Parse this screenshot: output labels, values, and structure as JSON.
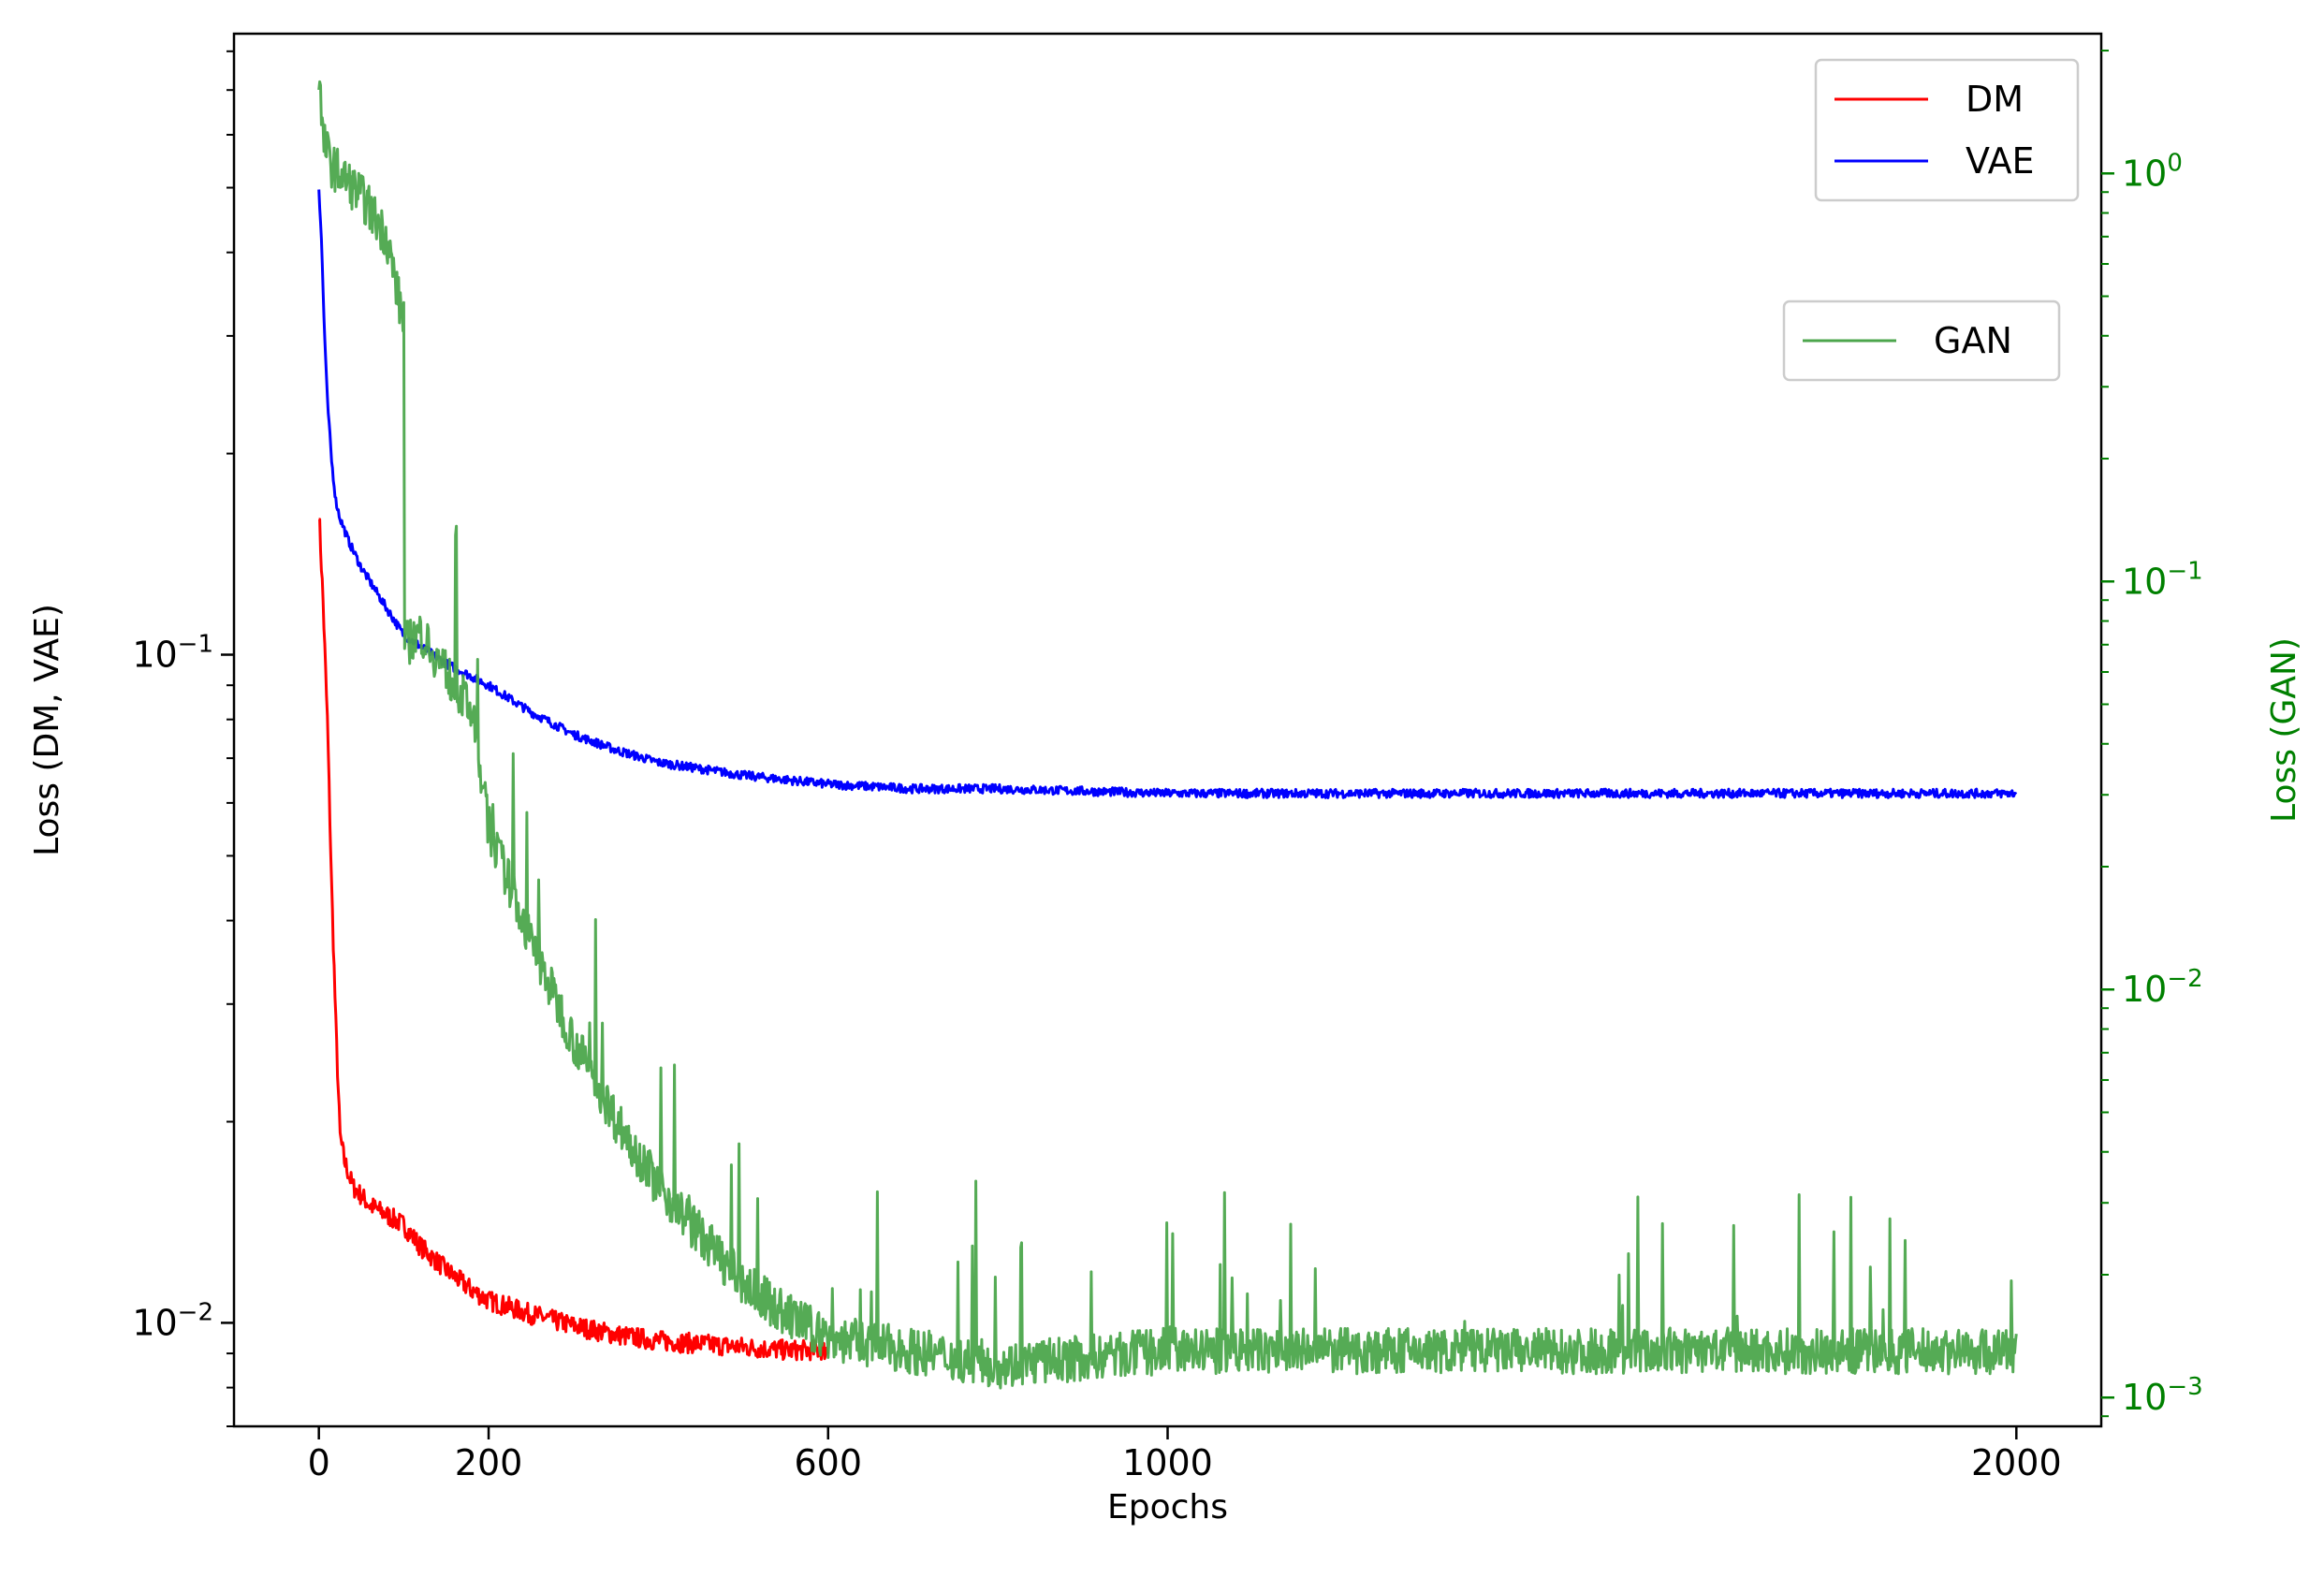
{
  "chart_data": {
    "type": "line",
    "title": "",
    "xlabel": "Epochs",
    "ylabel": "Loss (DM, VAE)",
    "ylabel_right": "Loss (GAN)",
    "xlim": [
      -100,
      2100
    ],
    "xticks": [
      0,
      200,
      600,
      1000,
      2000
    ],
    "xtick_labels": [
      "0",
      "200",
      "600",
      "1000",
      "2000"
    ],
    "ylim": [
      0.007,
      0.85
    ],
    "yscale": "log",
    "ytick_left": [
      {
        "value": 0.1,
        "base": "10",
        "exp": "−1"
      },
      {
        "value": 0.01,
        "base": "10",
        "exp": "−2"
      }
    ],
    "ylim_right": [
      0.00085,
      2.2
    ],
    "yscale_right": "log",
    "ytick_right": [
      {
        "value": 1,
        "base": "10",
        "exp": "0"
      },
      {
        "value": 0.1,
        "base": "10",
        "exp": "−1"
      },
      {
        "value": 0.01,
        "base": "10",
        "exp": "−2"
      },
      {
        "value": 0.001,
        "base": "10",
        "exp": "−3"
      }
    ],
    "grid": false,
    "legend_left": {
      "placement": "upper-right",
      "entries": [
        "DM",
        "VAE"
      ]
    },
    "legend_right": {
      "placement": "right, below upper legend",
      "entries": [
        "GAN"
      ]
    },
    "series": [
      {
        "name": "DM",
        "axis": "left",
        "color": "#ff0000",
        "x": [
          0,
          5,
          10,
          15,
          20,
          25,
          30,
          40,
          50,
          60,
          80,
          100,
          120,
          150,
          180,
          200,
          250,
          300,
          350,
          400,
          450,
          500,
          550,
          600
        ],
        "y": [
          0.165,
          0.12,
          0.08,
          0.045,
          0.028,
          0.019,
          0.0175,
          0.016,
          0.0155,
          0.015,
          0.0145,
          0.014,
          0.013,
          0.012,
          0.0112,
          0.0108,
          0.0103,
          0.0099,
          0.0096,
          0.0094,
          0.0093,
          0.0092,
          0.0091,
          0.0091
        ],
        "noise": 0.035
      },
      {
        "name": "VAE",
        "axis": "left",
        "color": "#0000ff",
        "x": [
          0,
          3,
          6,
          10,
          15,
          20,
          25,
          35,
          50,
          75,
          100,
          150,
          200,
          250,
          300,
          350,
          400,
          500,
          600,
          700,
          800,
          1000,
          1500,
          2000
        ],
        "y": [
          0.5,
          0.42,
          0.32,
          0.24,
          0.195,
          0.17,
          0.16,
          0.148,
          0.135,
          0.12,
          0.107,
          0.097,
          0.09,
          0.082,
          0.076,
          0.072,
          0.069,
          0.066,
          0.064,
          0.063,
          0.063,
          0.062,
          0.062,
          0.062
        ],
        "noise": 0.015
      },
      {
        "name": "GAN",
        "axis": "right",
        "color": "#4ca64c",
        "x": [
          0,
          5,
          15,
          50,
          80,
          95,
          100,
          101,
          120,
          150,
          180,
          200,
          250,
          300,
          350,
          400,
          450,
          500,
          550,
          600,
          700,
          800,
          900,
          1000,
          1500,
          2000
        ],
        "y": [
          1.8,
          1.2,
          1.05,
          0.88,
          0.7,
          0.48,
          0.45,
          0.07,
          0.075,
          0.06,
          0.048,
          0.025,
          0.013,
          0.0075,
          0.0048,
          0.0033,
          0.0025,
          0.0019,
          0.0016,
          0.0014,
          0.0013,
          0.0012,
          0.00125,
          0.0013,
          0.0013,
          0.0013
        ],
        "noise": 0.13
      }
    ]
  }
}
